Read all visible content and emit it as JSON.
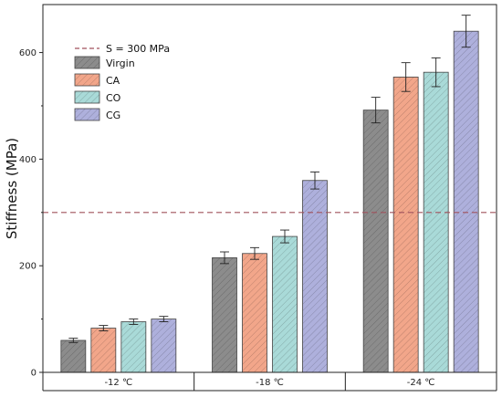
{
  "chart_data": {
    "type": "bar",
    "title": "",
    "xlabel": "",
    "ylabel": "Stiffness (MPa)",
    "ylim": [
      0,
      690
    ],
    "yticks": [
      0,
      200,
      400,
      600
    ],
    "categories": [
      "-12 ℃",
      "-18 ℃",
      "-24 ℃"
    ],
    "series": [
      {
        "name": "Virgin",
        "color": "#8c8c8c",
        "values": [
          60,
          215,
          492
        ],
        "errors": [
          4,
          11,
          24
        ]
      },
      {
        "name": "CA",
        "color": "#f2a68a",
        "values": [
          83,
          223,
          554
        ],
        "errors": [
          5,
          11,
          27
        ]
      },
      {
        "name": "CO",
        "color": "#a9dad8",
        "values": [
          95,
          255,
          563
        ],
        "errors": [
          5,
          12,
          27
        ]
      },
      {
        "name": "CG",
        "color": "#aeb0dc",
        "values": [
          100,
          360,
          640
        ],
        "errors": [
          5,
          16,
          30
        ]
      }
    ],
    "reference_line": {
      "label": "S = 300 MPa",
      "value": 300,
      "color": "#a0525c",
      "style": "dashed"
    },
    "legend_position": "top-left",
    "grid": false,
    "hatch": "diagonal"
  }
}
